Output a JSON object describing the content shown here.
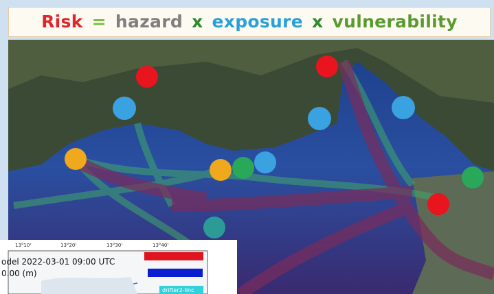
{
  "title": {
    "risk": "Risk",
    "eq": "=",
    "hazard": "hazard",
    "x1": "x",
    "exposure": "exposure",
    "x2": "x",
    "vulnerability": "vulnerability"
  },
  "inset": {
    "lon_ticks": [
      "13°10'",
      "13°20'",
      "13°30'",
      "13°40'"
    ],
    "model_label": "odel 2022-03-01 09:00 UTC",
    "depth_label": "0.00 (m)",
    "legend": [
      "drifter2-linc"
    ]
  }
}
